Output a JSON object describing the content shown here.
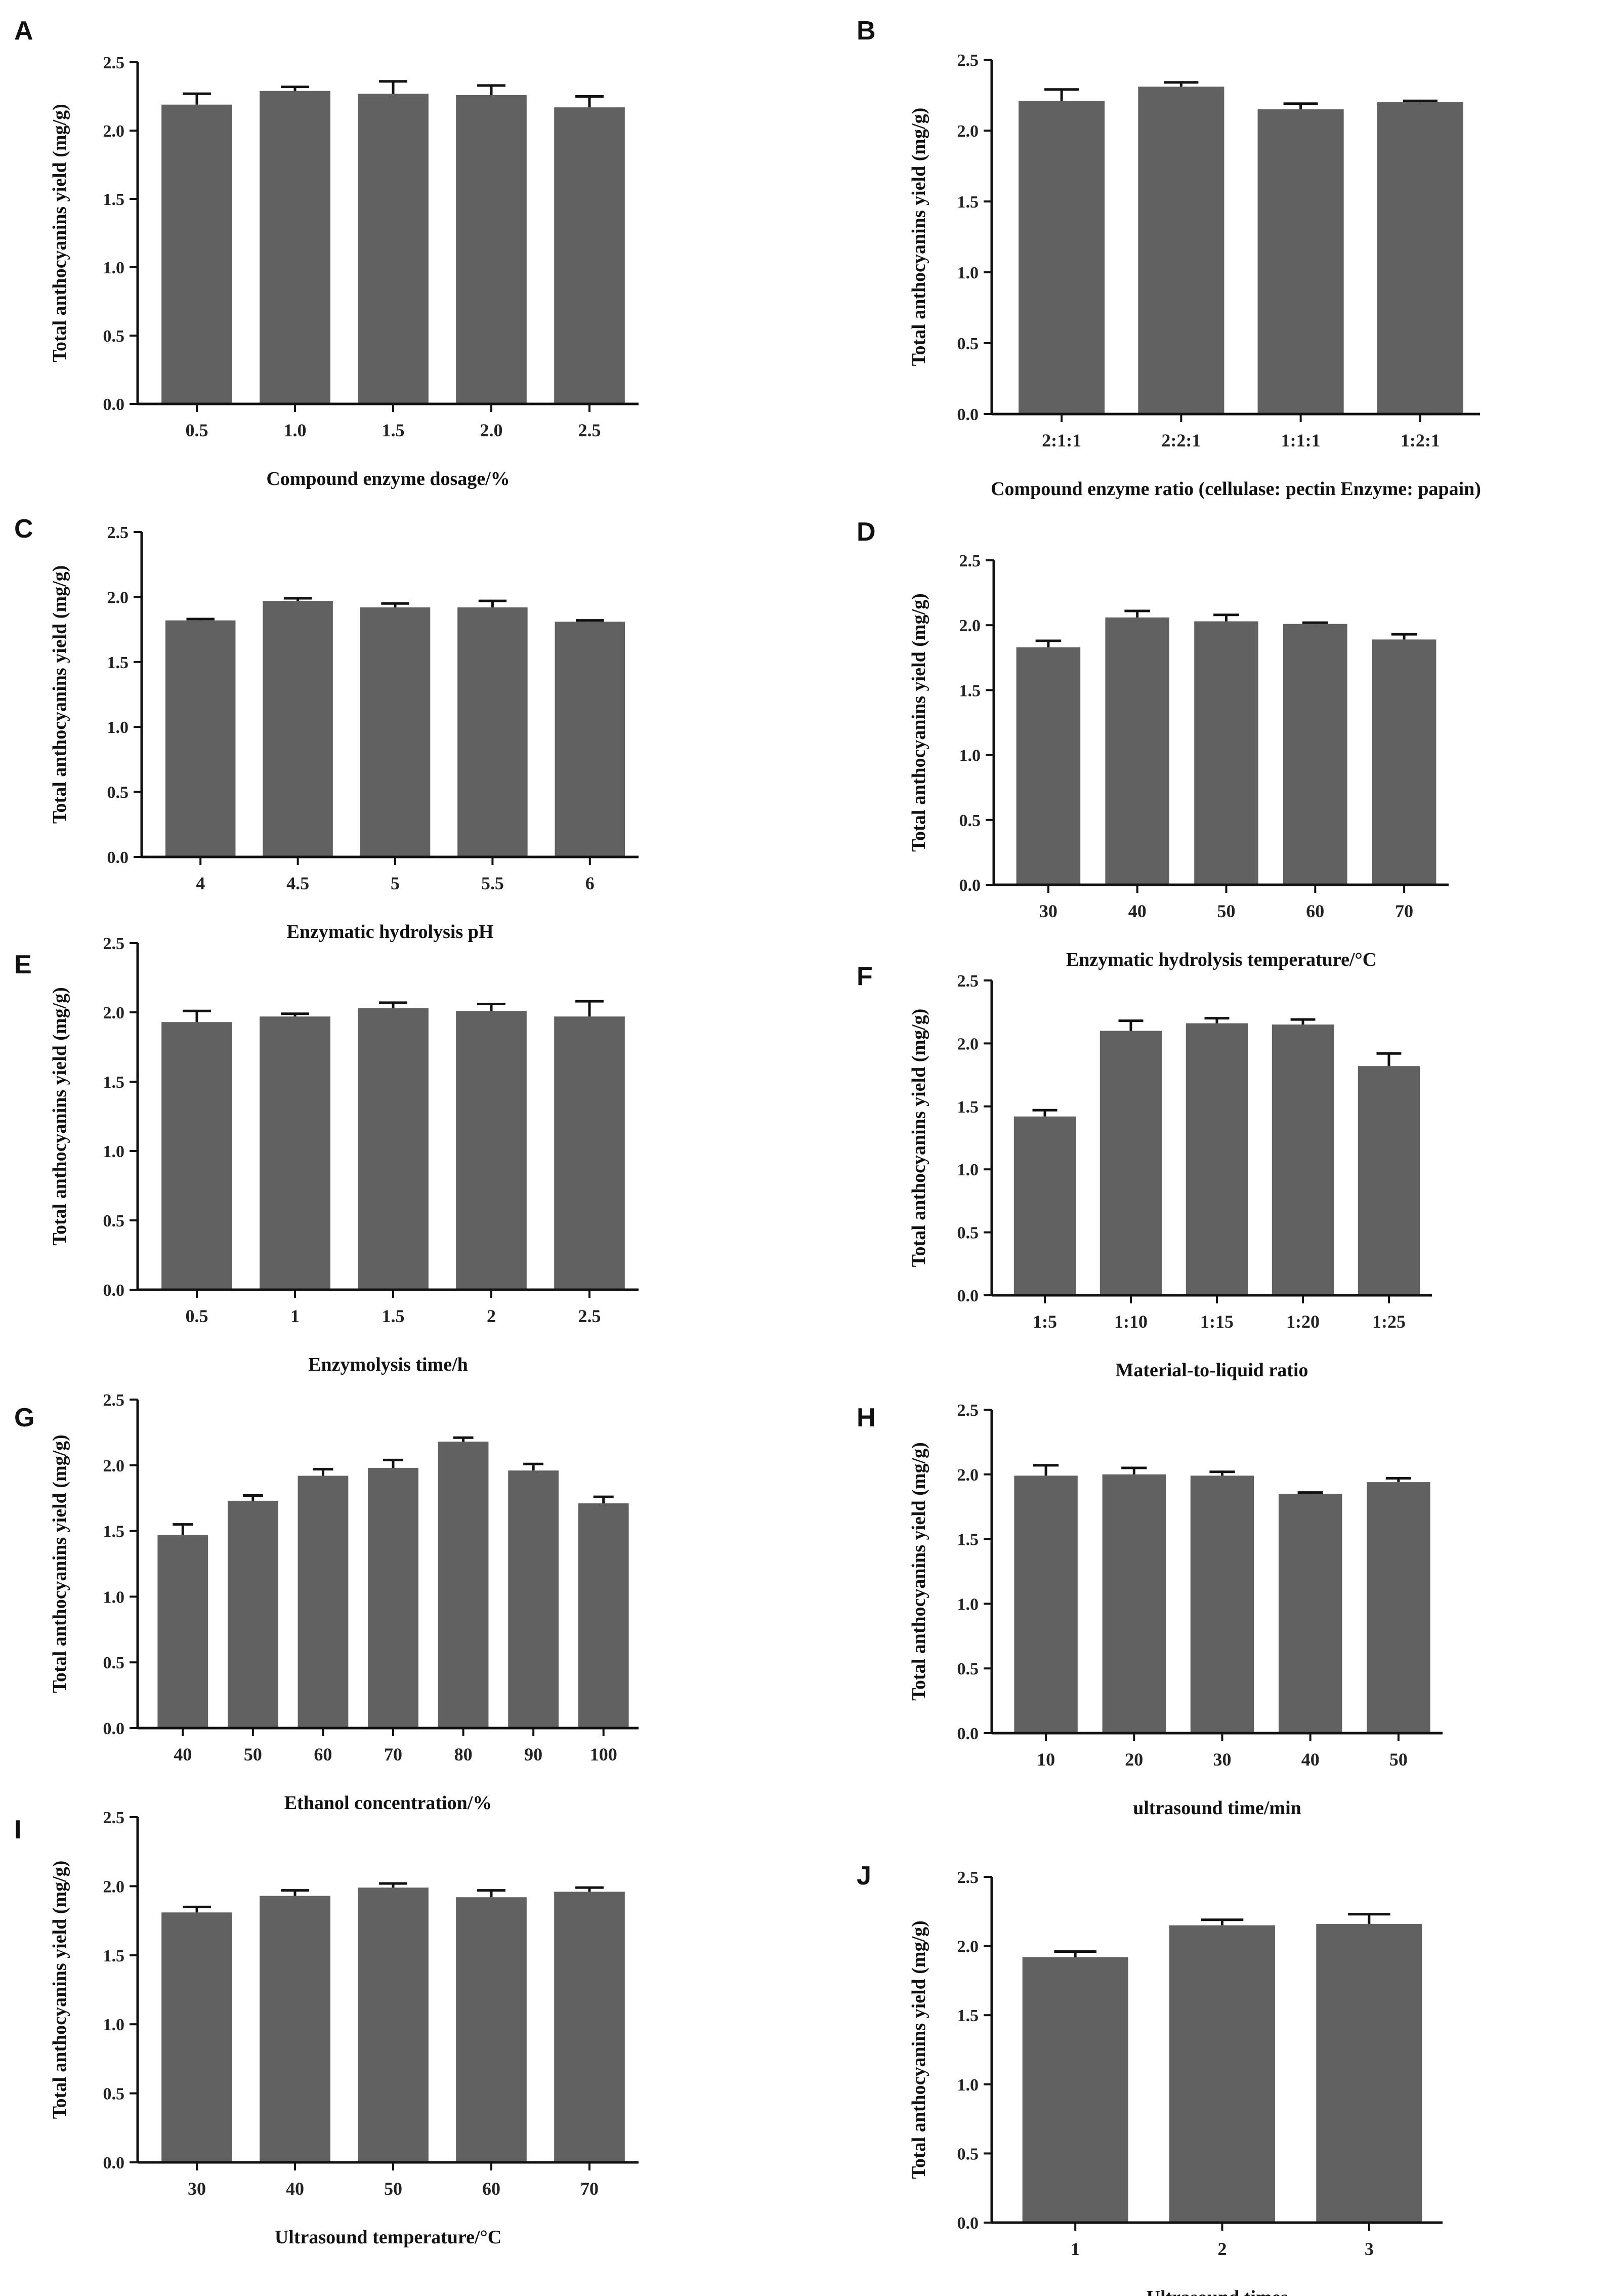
{
  "colors": {
    "bar": "#616161",
    "axis": "#111111",
    "error_bar": "#111111"
  },
  "chart_data": [
    {
      "panel": "A",
      "type": "bar",
      "categories": [
        "0.5",
        "1.0",
        "1.5",
        "2.0",
        "2.5"
      ],
      "values": [
        2.19,
        2.29,
        2.27,
        2.26,
        2.17
      ],
      "errors": [
        0.08,
        0.03,
        0.09,
        0.07,
        0.08
      ],
      "xlabel": "Compound enzyme dosage/%",
      "ylabel": "Total anthocyanins yield (mg/g)",
      "ylim": [
        0,
        2.5
      ],
      "yticks": [
        "0.0",
        "0.5",
        "1.0",
        "1.5",
        "2.0",
        "2.5"
      ]
    },
    {
      "panel": "B",
      "type": "bar",
      "categories": [
        "2:1:1",
        "2:2:1",
        "1:1:1",
        "1:2:1"
      ],
      "values": [
        2.21,
        2.31,
        2.15,
        2.2
      ],
      "errors": [
        0.08,
        0.03,
        0.04,
        0.01
      ],
      "xlabel": "Compound enzyme ratio (cellulase: pectin Enzyme: papain)",
      "ylabel": "Total anthocyanins yield (mg/g)",
      "ylim": [
        0,
        2.5
      ],
      "yticks": [
        "0.0",
        "0.5",
        "1.0",
        "1.5",
        "2.0",
        "2.5"
      ]
    },
    {
      "panel": "C",
      "type": "bar",
      "categories": [
        "4",
        "4.5",
        "5",
        "5.5",
        "6"
      ],
      "values": [
        1.82,
        1.97,
        1.92,
        1.92,
        1.81
      ],
      "errors": [
        0.01,
        0.02,
        0.03,
        0.05,
        0.01
      ],
      "xlabel": "Enzymatic hydrolysis pH",
      "ylabel": "Total anthocyanins yield (mg/g)",
      "ylim": [
        0,
        2.5
      ],
      "yticks": [
        "0.0",
        "0.5",
        "1.0",
        "1.5",
        "2.0",
        "2.5"
      ]
    },
    {
      "panel": "D",
      "type": "bar",
      "categories": [
        "30",
        "40",
        "50",
        "60",
        "70"
      ],
      "values": [
        1.83,
        2.06,
        2.03,
        2.01,
        1.89
      ],
      "errors": [
        0.05,
        0.05,
        0.05,
        0.01,
        0.04
      ],
      "xlabel": "Enzymatic hydrolysis temperature/°C",
      "ylabel": "Total anthocyanins yield (mg/g)",
      "ylim": [
        0,
        2.5
      ],
      "yticks": [
        "0.0",
        "0.5",
        "1.0",
        "1.5",
        "2.0",
        "2.5"
      ]
    },
    {
      "panel": "E",
      "type": "bar",
      "categories": [
        "0.5",
        "1",
        "1.5",
        "2",
        "2.5"
      ],
      "values": [
        1.93,
        1.97,
        2.03,
        2.01,
        1.97
      ],
      "errors": [
        0.08,
        0.02,
        0.04,
        0.05,
        0.11
      ],
      "xlabel": "Enzymolysis time/h",
      "ylabel": "Total anthocyanins yield (mg/g)",
      "ylim": [
        0,
        2.5
      ],
      "yticks": [
        "0.0",
        "0.5",
        "1.0",
        "1.5",
        "2.0",
        "2.5"
      ]
    },
    {
      "panel": "F",
      "type": "bar",
      "categories": [
        "1:5",
        "1:10",
        "1:15",
        "1:20",
        "1:25"
      ],
      "values": [
        1.42,
        2.1,
        2.16,
        2.15,
        1.82
      ],
      "errors": [
        0.05,
        0.08,
        0.04,
        0.04,
        0.1
      ],
      "xlabel": "Material-to-liquid ratio",
      "ylabel": "Total anthocyanins yield (mg/g)",
      "ylim": [
        0,
        2.5
      ],
      "yticks": [
        "0.0",
        "0.5",
        "1.0",
        "1.5",
        "2.0",
        "2.5"
      ]
    },
    {
      "panel": "G",
      "type": "bar",
      "categories": [
        "40",
        "50",
        "60",
        "70",
        "80",
        "90",
        "100"
      ],
      "values": [
        1.47,
        1.73,
        1.92,
        1.98,
        2.18,
        1.96,
        1.71
      ],
      "errors": [
        0.08,
        0.04,
        0.05,
        0.06,
        0.03,
        0.05,
        0.05
      ],
      "xlabel": "Ethanol concentration/%",
      "ylabel": "Total anthocyanins yield (mg/g)",
      "ylim": [
        0,
        2.5
      ],
      "yticks": [
        "0.0",
        "0.5",
        "1.0",
        "1.5",
        "2.0",
        "2.5"
      ]
    },
    {
      "panel": "H",
      "type": "bar",
      "categories": [
        "10",
        "20",
        "30",
        "40",
        "50"
      ],
      "values": [
        1.99,
        2.0,
        1.99,
        1.85,
        1.94
      ],
      "errors": [
        0.08,
        0.05,
        0.03,
        0.01,
        0.03
      ],
      "xlabel": "ultrasound time/min",
      "ylabel": "Total anthocyanins yield (mg/g)",
      "ylim": [
        0,
        2.5
      ],
      "yticks": [
        "0.0",
        "0.5",
        "1.0",
        "1.5",
        "2.0",
        "2.5"
      ]
    },
    {
      "panel": "I",
      "type": "bar",
      "categories": [
        "30",
        "40",
        "50",
        "60",
        "70"
      ],
      "values": [
        1.81,
        1.93,
        1.99,
        1.92,
        1.96
      ],
      "errors": [
        0.04,
        0.04,
        0.03,
        0.05,
        0.03
      ],
      "xlabel": "Ultrasound temperature/°C",
      "ylabel": "Total anthocyanins yield (mg/g)",
      "ylim": [
        0,
        2.5
      ],
      "yticks": [
        "0.0",
        "0.5",
        "1.0",
        "1.5",
        "2.0",
        "2.5"
      ]
    },
    {
      "panel": "J",
      "type": "bar",
      "categories": [
        "1",
        "2",
        "3"
      ],
      "values": [
        1.92,
        2.15,
        2.16
      ],
      "errors": [
        0.04,
        0.04,
        0.07
      ],
      "xlabel": "Ultrasound times",
      "ylabel": "Total anthocyanins yield (mg/g)",
      "ylim": [
        0,
        2.5
      ],
      "yticks": [
        "0.0",
        "0.5",
        "1.0",
        "1.5",
        "2.0",
        "2.5"
      ]
    }
  ]
}
